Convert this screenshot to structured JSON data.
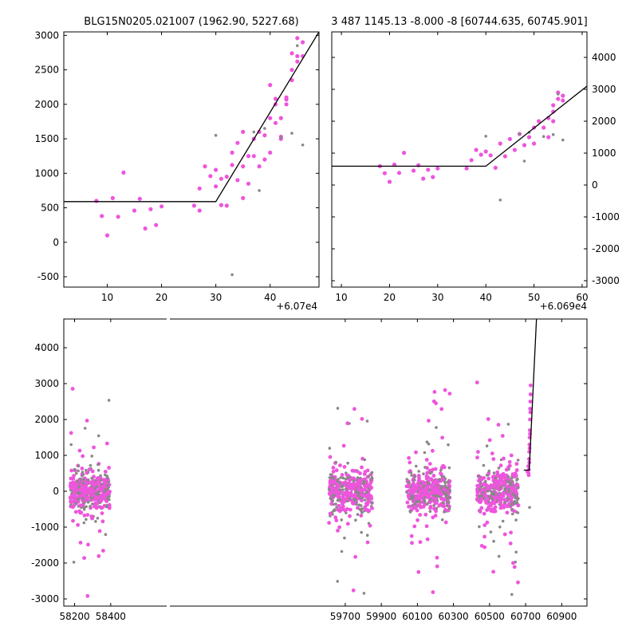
{
  "chart_data": [
    {
      "type": "scatter",
      "title": "BLG15N0205.021007 (1962.90, 5227.68)",
      "x_offset_label": "+6.07e4",
      "xlim": [
        60702,
        60749
      ],
      "ylim": [
        -650,
        3050
      ],
      "x_ticks": [
        {
          "value": 60710,
          "label": "10"
        },
        {
          "value": 60720,
          "label": "20"
        },
        {
          "value": 60730,
          "label": "30"
        },
        {
          "value": 60740,
          "label": "40"
        }
      ],
      "y_ticks": [
        -500,
        0,
        500,
        1000,
        1500,
        2000,
        2500,
        3000
      ],
      "y_axis_side": "left",
      "series": [
        {
          "color": "#ee55dd",
          "points": [
            [
              60708,
              600
            ],
            [
              60709,
              380
            ],
            [
              60710,
              100
            ],
            [
              60711,
              640
            ],
            [
              60712,
              370
            ],
            [
              60713,
              1010
            ],
            [
              60715,
              460
            ],
            [
              60716,
              630
            ],
            [
              60717,
              200
            ],
            [
              60718,
              480
            ],
            [
              60719,
              250
            ],
            [
              60720,
              520
            ],
            [
              60726,
              530
            ],
            [
              60727,
              460
            ],
            [
              60727,
              780
            ],
            [
              60728,
              1100
            ],
            [
              60729,
              960
            ],
            [
              60730,
              1050
            ],
            [
              60730,
              810
            ],
            [
              60731,
              920
            ],
            [
              60731,
              540
            ],
            [
              60732,
              950
            ],
            [
              60732,
              530
            ],
            [
              60733,
              1300
            ],
            [
              60733,
              1120
            ],
            [
              60734,
              900
            ],
            [
              60734,
              1440
            ],
            [
              60735,
              1100
            ],
            [
              60735,
              640
            ],
            [
              60735,
              1600
            ],
            [
              60736,
              1250
            ],
            [
              60736,
              850
            ],
            [
              60737,
              1500
            ],
            [
              60737,
              1250
            ],
            [
              60738,
              1600
            ],
            [
              60738,
              1100
            ],
            [
              60739,
              1550
            ],
            [
              60739,
              1200
            ],
            [
              60740,
              1300
            ],
            [
              60740,
              1800
            ],
            [
              60740,
              2280
            ],
            [
              60741,
              2000
            ],
            [
              60741,
              2080
            ],
            [
              60741,
              1730
            ],
            [
              60742,
              1800
            ],
            [
              60742,
              1500
            ],
            [
              60742,
              1530
            ],
            [
              60743,
              2100
            ],
            [
              60743,
              2070
            ],
            [
              60743,
              2000
            ],
            [
              60744,
              2350
            ],
            [
              60744,
              2500
            ],
            [
              60744,
              2740
            ],
            [
              60745,
              2960
            ],
            [
              60745,
              2620
            ],
            [
              60745,
              2700
            ],
            [
              60746,
              2700
            ],
            [
              60746,
              2900
            ]
          ]
        },
        {
          "color": "#888888",
          "points": [
            [
              60730,
              1550
            ],
            [
              60733,
              -470
            ],
            [
              60737,
              1600
            ],
            [
              60738,
              750
            ],
            [
              60739,
              1650
            ],
            [
              60742,
              1520
            ],
            [
              60744,
              1580
            ],
            [
              60746,
              1410
            ],
            [
              60745,
              2850
            ]
          ]
        }
      ],
      "model_line": [
        [
          60702,
          590
        ],
        [
          60730,
          590
        ],
        [
          60749,
          3050
        ]
      ]
    },
    {
      "type": "scatter",
      "title": "3 487 1145.13 -8.000 -8 [60744.635, 60745.901]",
      "x_offset_label": "+6.069e4",
      "xlim": [
        60698,
        60751
      ],
      "ylim": [
        -3200,
        4800
      ],
      "x_ticks": [
        {
          "value": 60700,
          "label": "10"
        },
        {
          "value": 60710,
          "label": "20"
        },
        {
          "value": 60720,
          "label": "30"
        },
        {
          "value": 60730,
          "label": "40"
        },
        {
          "value": 60740,
          "label": "50"
        },
        {
          "value": 60750,
          "label": "60"
        }
      ],
      "y_ticks": [
        -3000,
        -2000,
        -1000,
        0,
        1000,
        2000,
        3000,
        4000
      ],
      "y_axis_side": "right",
      "series": [
        {
          "color": "#ee55dd",
          "points": [
            [
              60708,
              590
            ],
            [
              60709,
              370
            ],
            [
              60710,
              100
            ],
            [
              60711,
              640
            ],
            [
              60712,
              380
            ],
            [
              60713,
              1010
            ],
            [
              60715,
              450
            ],
            [
              60716,
              620
            ],
            [
              60717,
              200
            ],
            [
              60718,
              480
            ],
            [
              60719,
              250
            ],
            [
              60720,
              520
            ],
            [
              60726,
              520
            ],
            [
              60727,
              780
            ],
            [
              60728,
              1100
            ],
            [
              60729,
              950
            ],
            [
              60730,
              1050
            ],
            [
              60731,
              930
            ],
            [
              60732,
              540
            ],
            [
              60733,
              1300
            ],
            [
              60734,
              900
            ],
            [
              60735,
              1440
            ],
            [
              60736,
              1100
            ],
            [
              60737,
              1600
            ],
            [
              60738,
              1250
            ],
            [
              60739,
              1500
            ],
            [
              60740,
              1300
            ],
            [
              60740,
              1800
            ],
            [
              60741,
              2000
            ],
            [
              60742,
              1800
            ],
            [
              60743,
              2100
            ],
            [
              60744,
              2300
            ],
            [
              60744,
              2500
            ],
            [
              60745,
              2700
            ],
            [
              60745,
              2900
            ],
            [
              60746,
              2650
            ],
            [
              60746,
              2800
            ],
            [
              60744,
              2000
            ],
            [
              60743,
              1500
            ]
          ]
        },
        {
          "color": "#888888",
          "points": [
            [
              60730,
              1530
            ],
            [
              60733,
              -470
            ],
            [
              60737,
              1600
            ],
            [
              60738,
              750
            ],
            [
              60739,
              1650
            ],
            [
              60742,
              1520
            ],
            [
              60744,
              1580
            ],
            [
              60746,
              1410
            ],
            [
              60745,
              2850
            ]
          ]
        }
      ],
      "model_line": [
        [
          60698,
          590
        ],
        [
          60730,
          590
        ],
        [
          60751,
          3100
        ]
      ]
    },
    {
      "type": "scatter",
      "xlim": [
        58140,
        61040
      ],
      "ylim": [
        -3200,
        4800
      ],
      "x_ticks": [
        {
          "value": 58200,
          "label": "58200"
        },
        {
          "value": 58400,
          "label": "58400"
        },
        {
          "value": 59700,
          "label": "59700"
        },
        {
          "value": 59900,
          "label": "59900"
        },
        {
          "value": 60100,
          "label": "60100"
        },
        {
          "value": 60300,
          "label": "60300"
        },
        {
          "value": 60500,
          "label": "60500"
        },
        {
          "value": 60700,
          "label": "60700"
        },
        {
          "value": 60900,
          "label": "60900"
        }
      ],
      "y_ticks": [
        -3000,
        -2000,
        -1000,
        0,
        1000,
        2000,
        3000,
        4000
      ],
      "y_axis_side": "left",
      "seasons": [
        {
          "x_range": [
            58175,
            58395
          ],
          "count": 420
        },
        {
          "x_range": [
            59610,
            59850
          ],
          "count": 420
        },
        {
          "x_range": [
            60040,
            60280
          ],
          "count": 420
        },
        {
          "x_range": [
            60430,
            60660
          ],
          "count": 420
        }
      ],
      "event_points": [
        [
          60715,
          700
        ],
        [
          60716,
          500
        ],
        [
          60717,
          450
        ],
        [
          60718,
          600
        ],
        [
          60719,
          900
        ],
        [
          60720,
          1100
        ],
        [
          60721,
          1300
        ],
        [
          60722,
          1500
        ],
        [
          60723,
          1700
        ],
        [
          60724,
          2000
        ],
        [
          60725,
          2300
        ],
        [
          60726,
          2500
        ],
        [
          60727,
          2700
        ],
        [
          60728,
          2950
        ],
        [
          60720,
          800
        ],
        [
          60722,
          1200
        ],
        [
          60724,
          1600
        ],
        [
          60726,
          2200
        ],
        [
          60710,
          550
        ]
      ],
      "event_gray": [
        [
          60722,
          -450
        ]
      ],
      "model_line": [
        [
          60690,
          590
        ],
        [
          60720,
          590
        ],
        [
          60760,
          4800
        ]
      ],
      "colors": {
        "pink": "#ee55dd",
        "gray": "#888888"
      }
    }
  ]
}
